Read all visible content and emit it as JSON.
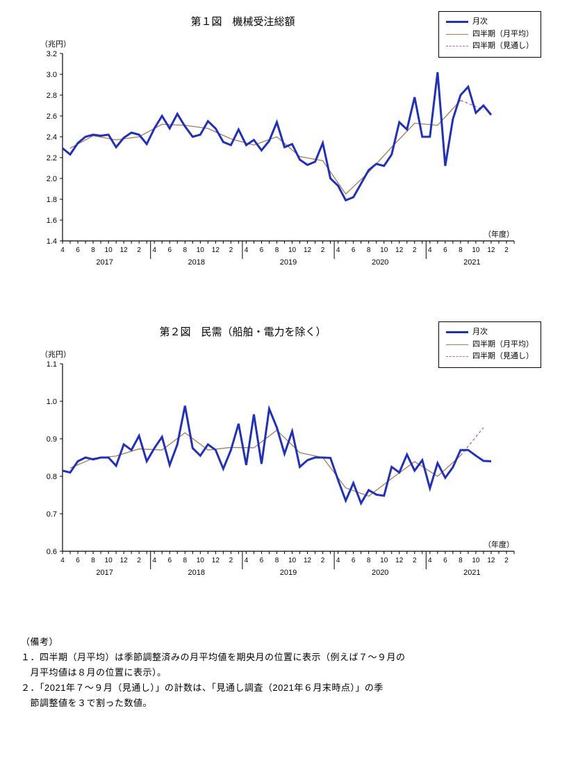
{
  "chart1": {
    "type": "line",
    "title": "第１図　機械受注総額",
    "ylabel": "（兆円）",
    "xlabel_right": "（年度）",
    "ylim": [
      1.4,
      3.2
    ],
    "ytick_step": 0.2,
    "label_fontsize": 11,
    "title_fontsize": 15,
    "background_color": "#ffffff",
    "axis_color": "#000000",
    "years": [
      "2017",
      "2018",
      "2019",
      "2020",
      "2021"
    ],
    "month_labels": [
      "4",
      "6",
      "8",
      "10",
      "12",
      "2"
    ],
    "legend": {
      "monthly": "月次",
      "quarterly": "四半期（月平均）",
      "outlook": "四半期（見通し）"
    },
    "series": {
      "monthly": {
        "color": "#1f2fbf",
        "width": 3,
        "values": [
          2.29,
          2.23,
          2.34,
          2.4,
          2.42,
          2.41,
          2.42,
          2.3,
          2.39,
          2.44,
          2.42,
          2.33,
          2.48,
          2.6,
          2.48,
          2.62,
          2.5,
          2.4,
          2.42,
          2.55,
          2.48,
          2.35,
          2.32,
          2.47,
          2.32,
          2.37,
          2.27,
          2.36,
          2.54,
          2.3,
          2.33,
          2.18,
          2.13,
          2.16,
          2.34,
          2.0,
          1.93,
          1.79,
          1.82,
          1.95,
          2.08,
          2.14,
          2.12,
          2.23,
          2.54,
          2.47,
          2.78,
          2.4,
          2.4,
          3.02,
          2.12,
          2.57,
          2.8,
          2.88,
          2.63,
          2.7,
          2.61
        ]
      },
      "quarterly": {
        "color": "#a67c52",
        "width": 1.3,
        "points": [
          {
            "i": 1,
            "v": 2.29
          },
          {
            "i": 4,
            "v": 2.41
          },
          {
            "i": 7,
            "v": 2.37
          },
          {
            "i": 10,
            "v": 2.4
          },
          {
            "i": 13,
            "v": 2.52
          },
          {
            "i": 16,
            "v": 2.51
          },
          {
            "i": 19,
            "v": 2.48
          },
          {
            "i": 22,
            "v": 2.38
          },
          {
            "i": 25,
            "v": 2.32
          },
          {
            "i": 28,
            "v": 2.4
          },
          {
            "i": 31,
            "v": 2.21
          },
          {
            "i": 34,
            "v": 2.17
          },
          {
            "i": 37,
            "v": 1.85
          },
          {
            "i": 40,
            "v": 2.06
          },
          {
            "i": 43,
            "v": 2.3
          },
          {
            "i": 46,
            "v": 2.53
          },
          {
            "i": 49,
            "v": 2.51
          },
          {
            "i": 52,
            "v": 2.75
          }
        ]
      },
      "outlook": {
        "color": "#b060c0",
        "width": 1.3,
        "dash": "4,3",
        "points": [
          {
            "i": 52,
            "v": 2.75
          },
          {
            "i": 55,
            "v": 2.66
          }
        ]
      }
    }
  },
  "chart2": {
    "type": "line",
    "title": "第２図　民需（船舶・電力を除く）",
    "ylabel": "（兆円）",
    "xlabel_right": "（年度）",
    "ylim": [
      0.6,
      1.1
    ],
    "ytick_step": 0.1,
    "label_fontsize": 11,
    "title_fontsize": 15,
    "background_color": "#ffffff",
    "axis_color": "#000000",
    "years": [
      "2017",
      "2018",
      "2019",
      "2020",
      "2021"
    ],
    "month_labels": [
      "4",
      "6",
      "8",
      "10",
      "12",
      "2"
    ],
    "legend": {
      "monthly": "月次",
      "quarterly": "四半期（月平均）",
      "outlook": "四半期（見通し）"
    },
    "series": {
      "monthly": {
        "color": "#1f2fbf",
        "width": 3,
        "values": [
          0.815,
          0.81,
          0.84,
          0.85,
          0.845,
          0.85,
          0.85,
          0.828,
          0.885,
          0.87,
          0.908,
          0.84,
          0.875,
          0.905,
          0.83,
          0.885,
          0.988,
          0.875,
          0.855,
          0.885,
          0.87,
          0.82,
          0.87,
          0.94,
          0.83,
          0.965,
          0.833,
          0.98,
          0.93,
          0.86,
          0.92,
          0.825,
          0.843,
          0.85,
          0.85,
          0.849,
          0.79,
          0.735,
          0.782,
          0.728,
          0.763,
          0.751,
          0.748,
          0.825,
          0.81,
          0.858,
          0.815,
          0.843,
          0.768,
          0.835,
          0.796,
          0.824,
          0.87,
          0.87,
          0.855,
          0.841,
          0.84
        ]
      },
      "quarterly": {
        "color": "#a67c52",
        "width": 1.3,
        "points": [
          {
            "i": 1,
            "v": 0.822
          },
          {
            "i": 4,
            "v": 0.848
          },
          {
            "i": 7,
            "v": 0.854
          },
          {
            "i": 10,
            "v": 0.873
          },
          {
            "i": 13,
            "v": 0.87
          },
          {
            "i": 16,
            "v": 0.916
          },
          {
            "i": 19,
            "v": 0.87
          },
          {
            "i": 22,
            "v": 0.877
          },
          {
            "i": 25,
            "v": 0.876
          },
          {
            "i": 28,
            "v": 0.923
          },
          {
            "i": 31,
            "v": 0.863
          },
          {
            "i": 34,
            "v": 0.85
          },
          {
            "i": 37,
            "v": 0.769
          },
          {
            "i": 40,
            "v": 0.747
          },
          {
            "i": 43,
            "v": 0.794
          },
          {
            "i": 46,
            "v": 0.839
          },
          {
            "i": 49,
            "v": 0.8
          },
          {
            "i": 52,
            "v": 0.855
          }
        ]
      },
      "outlook": {
        "color": "#b060c0",
        "width": 1.3,
        "dash": "4,3",
        "points": [
          {
            "i": 52,
            "v": 0.855
          },
          {
            "i": 55,
            "v": 0.93
          }
        ]
      }
    }
  },
  "notes": {
    "heading": "（備考）",
    "line1a": "１．四半期（月平均）は季節調整済みの月平均値を期央月の位置に表示（例えば７～９月の",
    "line1b": "　月平均値は８月の位置に表示）。",
    "line2a": "２．「2021年７～９月（見通し）」の計数は、「見通し調査（2021年６月末時点）」の季",
    "line2b": "　節調整値を３で割った数値。"
  }
}
